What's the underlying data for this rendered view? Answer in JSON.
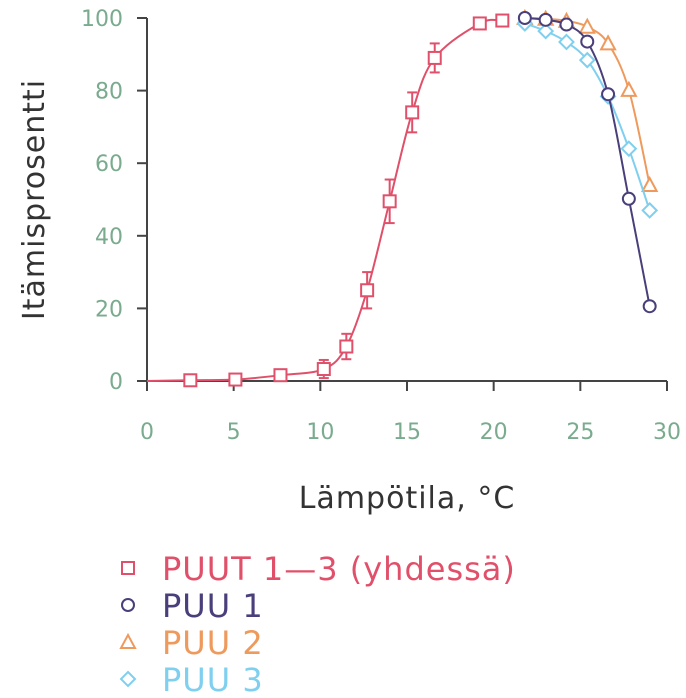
{
  "chart_data": {
    "type": "line",
    "xlabel": "Lämpötila, °C",
    "ylabel": "Itämisprosentti",
    "xlim": [
      0,
      30
    ],
    "ylim": [
      0,
      100
    ],
    "xticks": [
      0,
      5,
      10,
      15,
      20,
      25,
      30
    ],
    "yticks": [
      0,
      20,
      40,
      60,
      80,
      100
    ],
    "grid": false,
    "legend_position": "bottom-left",
    "series": [
      {
        "name": "PUUT 1—3 (yhdessä)",
        "marker": "square",
        "color": "#e0506a",
        "x": [
          1.2,
          2.5,
          3.8,
          5.1,
          6.4,
          7.7,
          8.9,
          10.2,
          11.5,
          12.7,
          14.0,
          15.3,
          16.6,
          17.8
        ],
        "y": [
          0.2,
          0.4,
          1.6,
          3.3,
          9.5,
          25,
          49.5,
          74,
          89,
          98.5,
          99.3,
          null,
          null,
          null
        ],
        "x_points": [
          2.5,
          5.1,
          7.7,
          10.2,
          11.5,
          12.7,
          14.0,
          15.3,
          16.6,
          19.2,
          20.5
        ],
        "y_points": [
          0.2,
          0.4,
          1.6,
          3.3,
          9.5,
          25,
          49.5,
          74,
          89,
          98.5,
          99.3
        ],
        "error": [
          0,
          0,
          0,
          2.5,
          3.5,
          5,
          6,
          5.5,
          4,
          0,
          0
        ]
      },
      {
        "name": "PUU 1",
        "marker": "circle",
        "color": "#4a3f7a",
        "x": [
          21.8,
          23.0,
          24.2,
          25.4,
          26.6,
          27.8,
          29.0
        ],
        "y": [
          100,
          99.5,
          98.2,
          93.5,
          79,
          50.2,
          20.6
        ]
      },
      {
        "name": "PUU 2",
        "marker": "triangle",
        "color": "#ef9a5d",
        "x": [
          21.8,
          23.0,
          24.2,
          25.4,
          26.6,
          27.8,
          29.0
        ],
        "y": [
          100,
          99.8,
          99.2,
          97.6,
          93,
          80.2,
          54
        ]
      },
      {
        "name": "PUU 3",
        "marker": "diamond",
        "color": "#7fcfef",
        "x": [
          21.8,
          23.0,
          24.2,
          25.4,
          26.6,
          27.8,
          29.0
        ],
        "y": [
          98.5,
          96.4,
          93.4,
          88.4,
          78.4,
          64,
          47
        ]
      }
    ]
  }
}
